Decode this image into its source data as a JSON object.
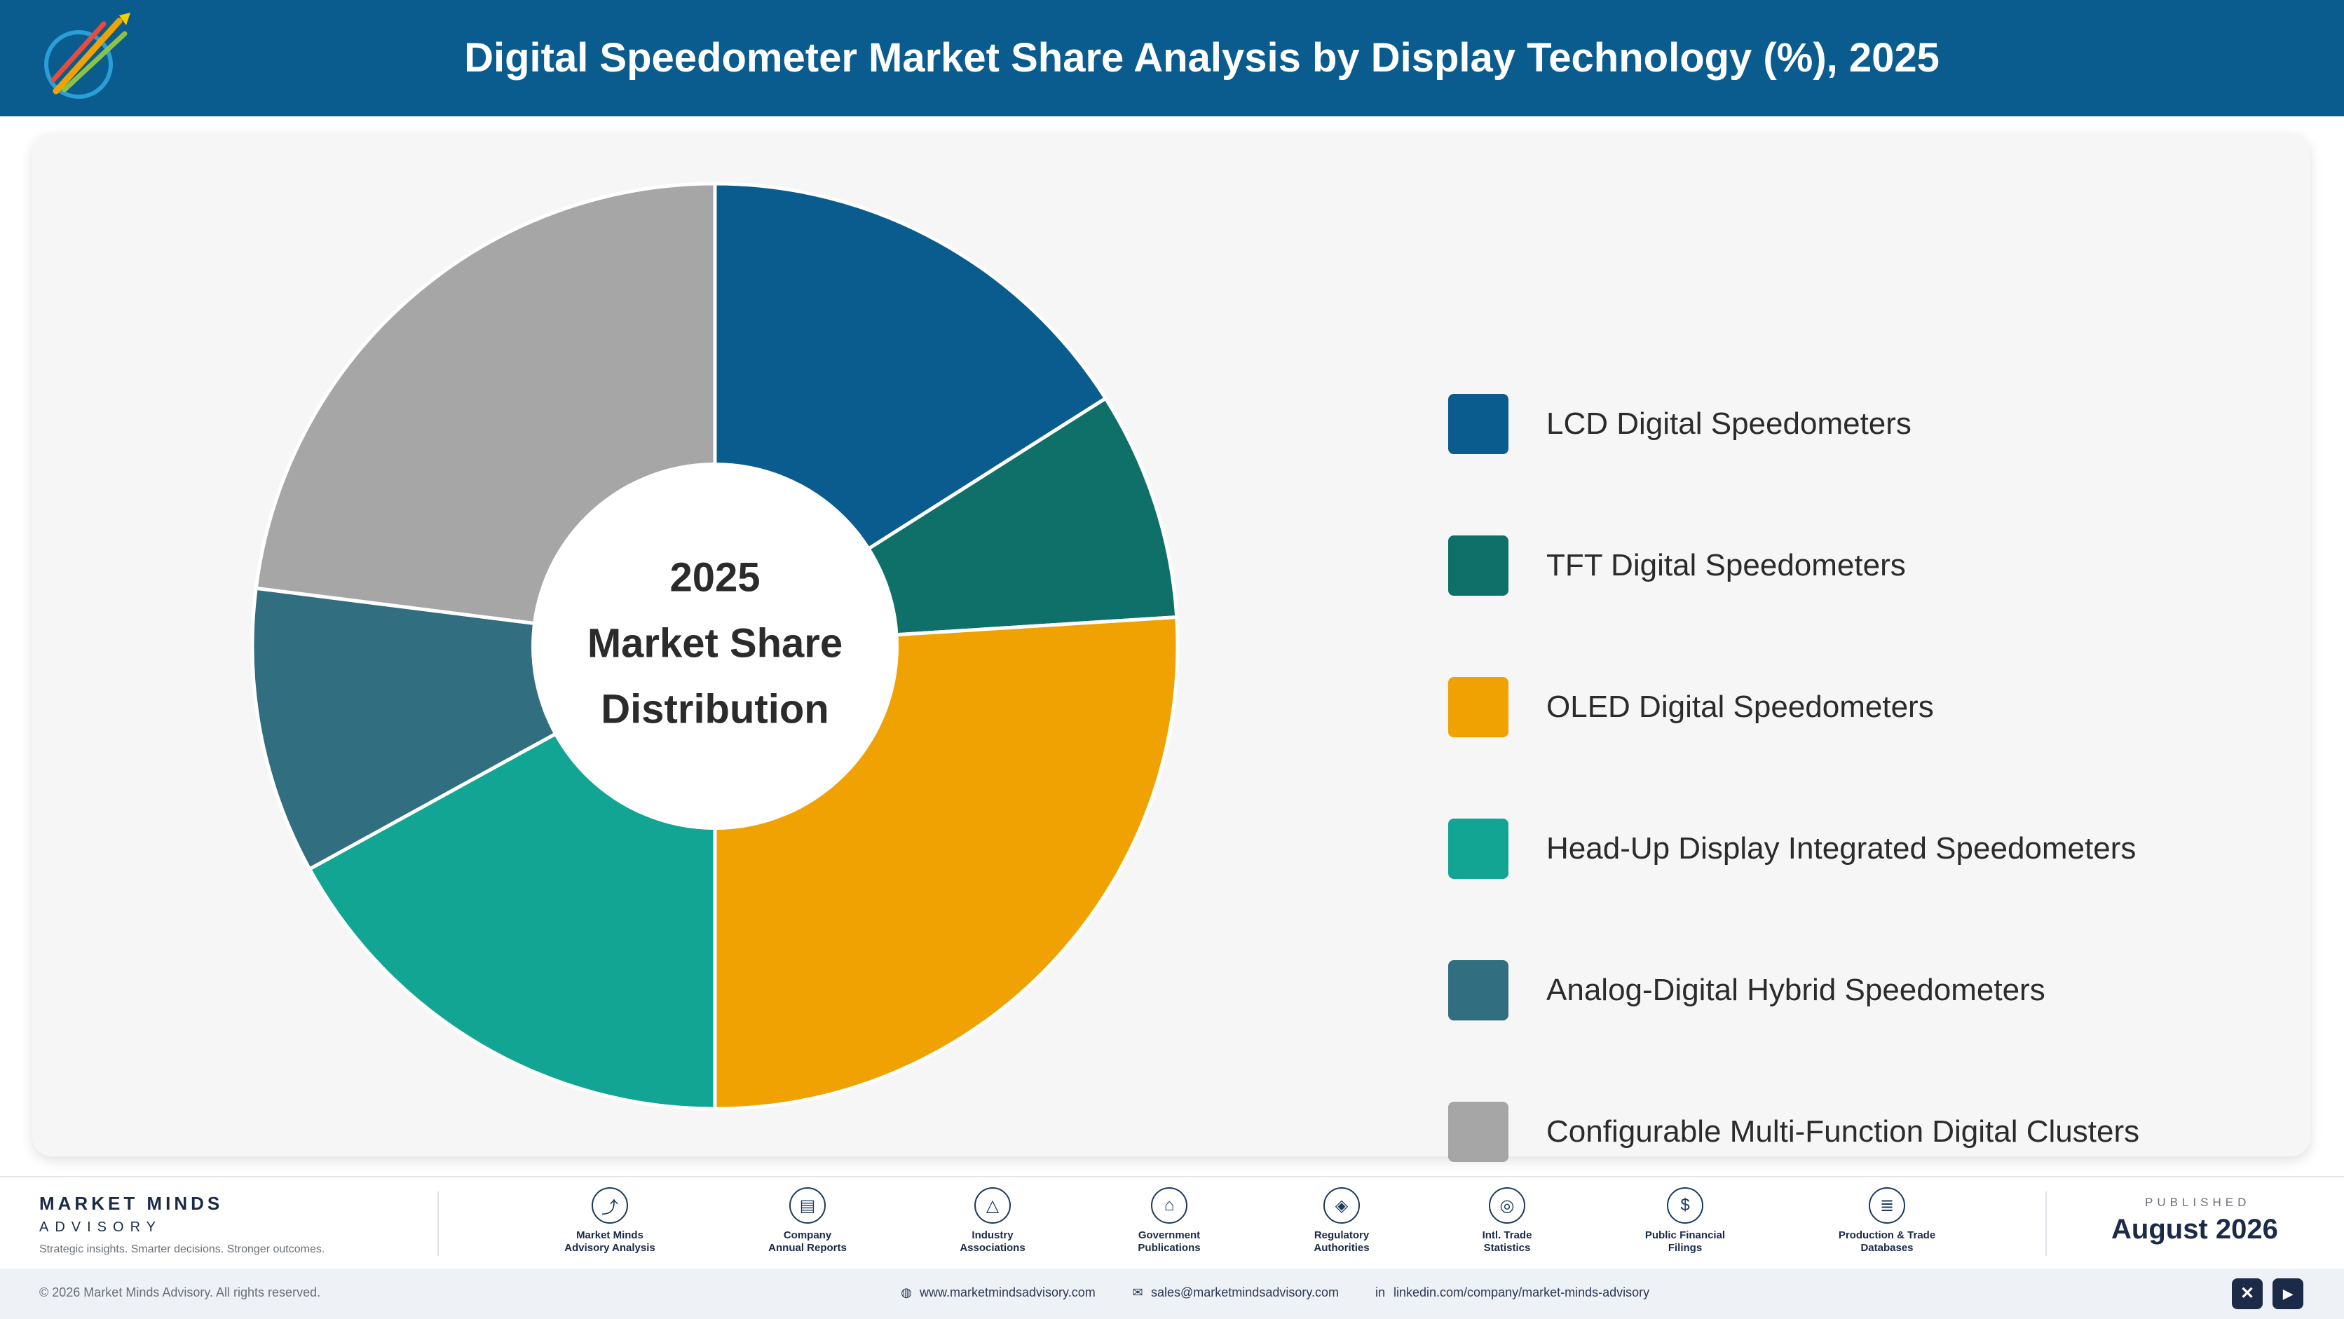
{
  "header": {
    "title": "Digital Speedometer Market Share Analysis by Display Technology (%), 2025",
    "logo_icon": "market-minds-logo-icon"
  },
  "chart_data": {
    "type": "pie",
    "center_label": [
      "2025",
      "Market Share",
      "Distribution"
    ],
    "legend_position": "right",
    "categories": [
      "LCD Digital Speedometers",
      "TFT Digital Speedometers",
      "OLED Digital Speedometers",
      "Head-Up Display Integrated Speedometers",
      "Analog-Digital Hybrid Speedometers",
      "Configurable Multi-Function Digital Clusters"
    ],
    "values": [
      16,
      8,
      26,
      17,
      10,
      23
    ],
    "colors": [
      "#0a5c8f",
      "#0e7068",
      "#f0a202",
      "#12a594",
      "#306e80",
      "#a6a6a6"
    ]
  },
  "footer": {
    "brand_name": "MARKET MINDS",
    "brand_sub": "ADVISORY",
    "tagline": "Strategic insights. Smarter decisions. Stronger outcomes.",
    "sources": [
      {
        "label": "Market Minds\nAdvisory Analysis",
        "icon": "trend-line-icon",
        "glyph": "⤴"
      },
      {
        "label": "Company\nAnnual Reports",
        "icon": "document-icon",
        "glyph": "▤"
      },
      {
        "label": "Industry\nAssociations",
        "icon": "network-icon",
        "glyph": "△"
      },
      {
        "label": "Government\nPublications",
        "icon": "government-building-icon",
        "glyph": "⌂"
      },
      {
        "label": "Regulatory\nAuthorities",
        "icon": "shield-icon",
        "glyph": "◈"
      },
      {
        "label": "Intl. Trade\nStatistics",
        "icon": "globe-icon",
        "glyph": "◎"
      },
      {
        "label": "Public Financial\nFilings",
        "icon": "dollar-coin-icon",
        "glyph": "$"
      },
      {
        "label": "Production & Trade\nDatabases",
        "icon": "database-icon",
        "glyph": "≣"
      }
    ],
    "published_caption": "PUBLISHED",
    "published_date": "August 2026"
  },
  "bottom_bar": {
    "copyright": "© 2026 Market Minds Advisory. All rights reserved.",
    "website": "www.marketmindsadvisory.com",
    "email": "sales@marketmindsadvisory.com",
    "linkedin": "linkedin.com/company/market-minds-advisory",
    "social_x": "✕",
    "social_youtube": "▶"
  }
}
